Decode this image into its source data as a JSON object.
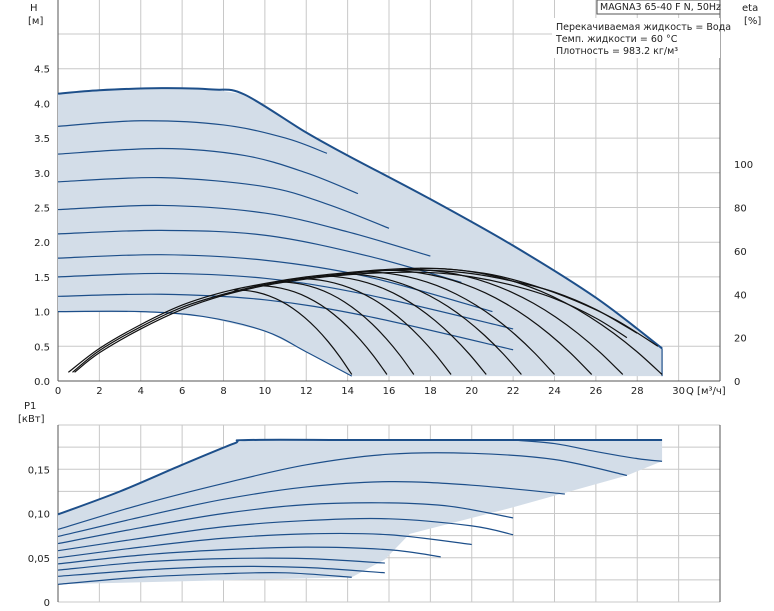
{
  "chart_data": [
    {
      "type": "line",
      "name": "head-chart",
      "ylabel_unit": "H",
      "ylabel_unit_2": "[м]",
      "y2label_unit": "eta",
      "y2label_unit_2": "[%]",
      "xlabel": "Q [м³/ч]",
      "xlim": [
        0,
        32
      ],
      "ylim": [
        0,
        5
      ],
      "y2lim": [
        0,
        160
      ],
      "xticks": [
        "0",
        "2",
        "4",
        "6",
        "8",
        "10",
        "12",
        "14",
        "16",
        "18",
        "20",
        "22",
        "24",
        "26",
        "28",
        "30"
      ],
      "yticks": [
        "0.0",
        "0.5",
        "1.0",
        "1.5",
        "2.0",
        "2.5",
        "3.0",
        "3.5",
        "4.0",
        "4.5"
      ],
      "y2ticks": [
        "0",
        "20",
        "40",
        "60",
        "80",
        "100"
      ],
      "model_label": "MAGNA3 65-40 F N, 50Hz",
      "info_lines": [
        "Перекачиваемая жидкость = Вода",
        "Темп. жидкости = 60 °C",
        "Плотность = 983.2 кг/м³"
      ],
      "envelope": [
        [
          0,
          4.14
        ],
        [
          2,
          4.19
        ],
        [
          5,
          4.22
        ],
        [
          7.5,
          4.2
        ],
        [
          9,
          4.13
        ],
        [
          12,
          3.58
        ],
        [
          14,
          3.25
        ],
        [
          18,
          2.62
        ],
        [
          22,
          1.95
        ],
        [
          26,
          1.2
        ],
        [
          29.2,
          0.47
        ],
        [
          29.2,
          0.07
        ],
        [
          14.2,
          0.07
        ],
        [
          12,
          0.42
        ],
        [
          10,
          0.72
        ],
        [
          7,
          0.93
        ],
        [
          4,
          1.0
        ],
        [
          0,
          1.0
        ]
      ],
      "series": [
        {
          "values": [
            [
              0,
              4.14
            ],
            [
              2,
              4.19
            ],
            [
              5,
              4.22
            ],
            [
              7.5,
              4.2
            ],
            [
              9,
              4.13
            ],
            [
              12,
              3.58
            ],
            [
              14,
              3.25
            ],
            [
              18,
              2.62
            ],
            [
              22,
              1.95
            ],
            [
              26,
              1.2
            ],
            [
              29.2,
              0.47
            ]
          ]
        },
        {
          "values": [
            [
              0,
              3.67
            ],
            [
              4,
              3.75
            ],
            [
              8,
              3.69
            ],
            [
              11,
              3.5
            ],
            [
              13,
              3.28
            ]
          ]
        },
        {
          "values": [
            [
              0,
              3.27
            ],
            [
              5,
              3.35
            ],
            [
              9,
              3.25
            ],
            [
              12,
              3.0
            ],
            [
              14.5,
              2.7
            ]
          ]
        },
        {
          "values": [
            [
              0,
              2.87
            ],
            [
              5,
              2.93
            ],
            [
              10,
              2.8
            ],
            [
              13,
              2.55
            ],
            [
              16,
              2.2
            ]
          ]
        },
        {
          "values": [
            [
              0,
              2.47
            ],
            [
              5,
              2.53
            ],
            [
              10,
              2.42
            ],
            [
              14,
              2.15
            ],
            [
              18,
              1.8
            ]
          ]
        },
        {
          "values": [
            [
              0,
              2.12
            ],
            [
              5,
              2.17
            ],
            [
              10,
              2.1
            ],
            [
              15,
              1.8
            ],
            [
              19.5,
              1.42
            ]
          ]
        },
        {
          "values": [
            [
              0,
              1.77
            ],
            [
              5,
              1.82
            ],
            [
              10,
              1.74
            ],
            [
              15,
              1.5
            ],
            [
              21,
              1.0
            ]
          ]
        },
        {
          "values": [
            [
              0,
              1.5
            ],
            [
              5,
              1.55
            ],
            [
              10,
              1.48
            ],
            [
              15,
              1.24
            ],
            [
              22,
              0.75
            ]
          ]
        },
        {
          "values": [
            [
              0,
              1.22
            ],
            [
              5,
              1.25
            ],
            [
              10,
              1.17
            ],
            [
              15,
              0.93
            ],
            [
              22,
              0.45
            ]
          ]
        },
        {
          "values": [
            [
              0,
              1.0
            ],
            [
              4,
              1.0
            ],
            [
              7,
              0.93
            ],
            [
              10,
              0.72
            ],
            [
              12,
              0.42
            ],
            [
              14.2,
              0.07
            ]
          ]
        }
      ],
      "efficiency": [
        {
          "values": [
            [
              0.5,
              4
            ],
            [
              2,
              15
            ],
            [
              4,
              26
            ],
            [
              6,
              35
            ],
            [
              8,
              41
            ],
            [
              10,
              45
            ],
            [
              12,
              48
            ],
            [
              14,
              50
            ],
            [
              16,
              51.5
            ],
            [
              17.5,
              52
            ],
            [
              19,
              51.5
            ],
            [
              21,
              49
            ],
            [
              23,
              44
            ],
            [
              25,
              37
            ],
            [
              27,
              28
            ],
            [
              29,
              16
            ]
          ]
        },
        {
          "values": [
            [
              0.7,
              4
            ],
            [
              2,
              14
            ],
            [
              4,
              25
            ],
            [
              6,
              34
            ],
            [
              8,
              40
            ],
            [
              10,
              44.5
            ],
            [
              12,
              47.5
            ],
            [
              14,
              49.5
            ],
            [
              16,
              51
            ],
            [
              18,
              51
            ],
            [
              20,
              49.5
            ],
            [
              22,
              46
            ],
            [
              24,
              41
            ],
            [
              26,
              33
            ],
            [
              28,
              22
            ]
          ]
        },
        {
          "values": [
            [
              0.8,
              4
            ],
            [
              2,
              13
            ],
            [
              4,
              24
            ],
            [
              6,
              33
            ],
            [
              8,
              39.5
            ],
            [
              10,
              44
            ],
            [
              12,
              47
            ],
            [
              14,
              49
            ],
            [
              16,
              50
            ],
            [
              18,
              50
            ],
            [
              20,
              48
            ],
            [
              22,
              44
            ],
            [
              24,
              38
            ],
            [
              26,
              29
            ],
            [
              27.5,
              20
            ]
          ]
        }
      ],
      "eff_drops": [
        [
          8.5,
          14.2
        ],
        [
          9.5,
          15.9
        ],
        [
          10.5,
          17.2
        ],
        [
          11.5,
          19.0
        ],
        [
          12.5,
          20.7
        ],
        [
          13.5,
          22.4
        ],
        [
          14.5,
          24.0
        ],
        [
          15.5,
          25.8
        ],
        [
          16.5,
          27.3
        ],
        [
          17.5,
          29.2
        ]
      ]
    },
    {
      "type": "line",
      "name": "power-chart",
      "ylabel_unit": "P1",
      "ylabel_unit_2": "[кВт]",
      "xlim": [
        0,
        32
      ],
      "ylim": [
        0,
        0.2
      ],
      "yticks": [
        "0",
        "0,05",
        "0,10",
        "0,15"
      ],
      "envelope": [
        [
          0,
          0.099
        ],
        [
          3,
          0.125
        ],
        [
          6,
          0.155
        ],
        [
          8.5,
          0.179
        ],
        [
          9.2,
          0.183
        ],
        [
          15,
          0.183
        ],
        [
          25,
          0.183
        ],
        [
          29.2,
          0.183
        ],
        [
          29.2,
          0.159
        ],
        [
          27.5,
          0.143
        ],
        [
          22,
          0.107
        ],
        [
          17,
          0.077
        ],
        [
          15.8,
          0.048
        ],
        [
          14.2,
          0.028
        ],
        [
          0,
          0.02
        ]
      ],
      "series": [
        {
          "values": [
            [
              0,
              0.099
            ],
            [
              3,
              0.125
            ],
            [
              6,
              0.155
            ],
            [
              8.5,
              0.179
            ],
            [
              9.2,
              0.183
            ],
            [
              15,
              0.183
            ],
            [
              25,
              0.183
            ],
            [
              29.2,
              0.183
            ]
          ]
        },
        {
          "values": [
            [
              22,
              0.183
            ],
            [
              24,
              0.179
            ],
            [
              26,
              0.17
            ],
            [
              28,
              0.162
            ],
            [
              29.2,
              0.159
            ]
          ]
        },
        {
          "values": [
            [
              0,
              0.082
            ],
            [
              4,
              0.11
            ],
            [
              8,
              0.134
            ],
            [
              12,
              0.155
            ],
            [
              16,
              0.167
            ],
            [
              20,
              0.168
            ],
            [
              24,
              0.161
            ],
            [
              27.5,
              0.143
            ]
          ]
        },
        {
          "values": [
            [
              0,
              0.074
            ],
            [
              4,
              0.096
            ],
            [
              8,
              0.116
            ],
            [
              12,
              0.13
            ],
            [
              16,
              0.136
            ],
            [
              20,
              0.132
            ],
            [
              24.5,
              0.122
            ]
          ]
        },
        {
          "values": [
            [
              0,
              0.066
            ],
            [
              4,
              0.084
            ],
            [
              8,
              0.1
            ],
            [
              12,
              0.11
            ],
            [
              16,
              0.112
            ],
            [
              19,
              0.108
            ],
            [
              22,
              0.095
            ]
          ]
        },
        {
          "values": [
            [
              0,
              0.058
            ],
            [
              4,
              0.072
            ],
            [
              8,
              0.085
            ],
            [
              12,
              0.092
            ],
            [
              16,
              0.094
            ],
            [
              20,
              0.086
            ],
            [
              22,
              0.076
            ]
          ]
        },
        {
          "values": [
            [
              0,
              0.05
            ],
            [
              4,
              0.062
            ],
            [
              8,
              0.072
            ],
            [
              12,
              0.077
            ],
            [
              16,
              0.076
            ],
            [
              20,
              0.065
            ]
          ]
        },
        {
          "values": [
            [
              0,
              0.043
            ],
            [
              4,
              0.053
            ],
            [
              8,
              0.059
            ],
            [
              12,
              0.062
            ],
            [
              16,
              0.059
            ],
            [
              18.5,
              0.051
            ]
          ]
        },
        {
          "values": [
            [
              0,
              0.036
            ],
            [
              4,
              0.045
            ],
            [
              8,
              0.049
            ],
            [
              12,
              0.049
            ],
            [
              15.8,
              0.044
            ]
          ]
        },
        {
          "values": [
            [
              0,
              0.029
            ],
            [
              4,
              0.036
            ],
            [
              8,
              0.04
            ],
            [
              12,
              0.039
            ],
            [
              15.8,
              0.033
            ]
          ]
        },
        {
          "values": [
            [
              0,
              0.02
            ],
            [
              4,
              0.028
            ],
            [
              8,
              0.032
            ],
            [
              11,
              0.033
            ],
            [
              14.2,
              0.028
            ]
          ]
        }
      ]
    }
  ]
}
